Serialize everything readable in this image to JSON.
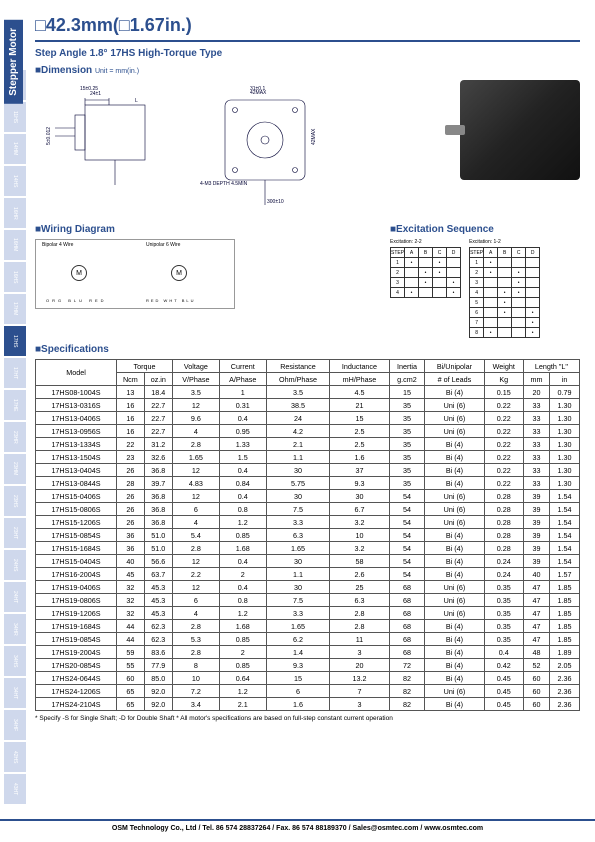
{
  "title": "□42.3mm(□1.67in.)",
  "subtitle": "Step Angle 1.8°   17HS High-Torque Type",
  "sections": {
    "dimension": "■Dimension",
    "dimension_unit": "Unit = mm(in.)",
    "wiring": "■Wiring Diagram",
    "excitation": "■Excitation Sequence",
    "specs": "■Specifications"
  },
  "sidelabel": "Stepper Motor",
  "sidetabs": [
    "8HS",
    "11HS",
    "14HM",
    "14HS",
    "16HR",
    "16HM",
    "16HS",
    "17HM",
    "17HS",
    "17HT",
    "17HE",
    "23HR",
    "23HM",
    "23HS",
    "23HT",
    "24HS",
    "24HT",
    "34HR",
    "34HS",
    "34HT",
    "34HF",
    "42HS",
    "43HT"
  ],
  "dim_labels": {
    "w": "42MAX",
    "h": "42MAX",
    "shaft": "5±0.012",
    "hole": "4-M3 DEPTH 4.5MIN",
    "pitch": "31±0.1",
    "lead": "300±10",
    "front": "24±1",
    "flat": "15±0.25"
  },
  "wiring_labels": {
    "left": "Bipolar 4 Wire",
    "right": "Unipolar 6 Wire",
    "m": "M",
    "colors": [
      "ORG",
      "BLU",
      "RED",
      "WHT",
      "YEL"
    ]
  },
  "exc_labels": {
    "t1": "Excitation: 2-2",
    "t2": "Excitation: 1-2"
  },
  "spec_headers": {
    "model": "Model",
    "torque": "Torque",
    "torque_u": [
      "Ncm",
      "oz.in"
    ],
    "voltage": "Voltage",
    "voltage_u": "V/Phase",
    "current": "Current",
    "current_u": "A/Phase",
    "resistance": "Resistance",
    "resistance_u": "Ohm/Phase",
    "inductance": "Inductance",
    "inductance_u": "mH/Phase",
    "inertia": "Inertia",
    "inertia_u": "g.cm2",
    "leads": "Bi/Unipolar",
    "leads_u": "# of Leads",
    "weight": "Weight",
    "weight_u": "Kg",
    "length": "Length \"L\"",
    "length_u": [
      "mm",
      "in"
    ]
  },
  "spec_rows": [
    [
      "17HS08-1004S",
      "13",
      "18.4",
      "3.5",
      "1",
      "3.5",
      "4.5",
      "15",
      "Bi (4)",
      "0.15",
      "20",
      "0.79"
    ],
    [
      "17HS13-0316S",
      "16",
      "22.7",
      "12",
      "0.31",
      "38.5",
      "21",
      "35",
      "Uni (6)",
      "0.22",
      "33",
      "1.30"
    ],
    [
      "17HS13-0406S",
      "16",
      "22.7",
      "9.6",
      "0.4",
      "24",
      "15",
      "35",
      "Uni (6)",
      "0.22",
      "33",
      "1.30"
    ],
    [
      "17HS13-0956S",
      "16",
      "22.7",
      "4",
      "0.95",
      "4.2",
      "2.5",
      "35",
      "Uni (6)",
      "0.22",
      "33",
      "1.30"
    ],
    [
      "17HS13-1334S",
      "22",
      "31.2",
      "2.8",
      "1.33",
      "2.1",
      "2.5",
      "35",
      "Bi (4)",
      "0.22",
      "33",
      "1.30"
    ],
    [
      "17HS13-1504S",
      "23",
      "32.6",
      "1.65",
      "1.5",
      "1.1",
      "1.6",
      "35",
      "Bi (4)",
      "0.22",
      "33",
      "1.30"
    ],
    [
      "17HS13-0404S",
      "26",
      "36.8",
      "12",
      "0.4",
      "30",
      "37",
      "35",
      "Bi (4)",
      "0.22",
      "33",
      "1.30"
    ],
    [
      "17HS13-0844S",
      "28",
      "39.7",
      "4.83",
      "0.84",
      "5.75",
      "9.3",
      "35",
      "Bi (4)",
      "0.22",
      "33",
      "1.30"
    ],
    [
      "17HS15-0406S",
      "26",
      "36.8",
      "12",
      "0.4",
      "30",
      "30",
      "54",
      "Uni (6)",
      "0.28",
      "39",
      "1.54"
    ],
    [
      "17HS15-0806S",
      "26",
      "36.8",
      "6",
      "0.8",
      "7.5",
      "6.7",
      "54",
      "Uni (6)",
      "0.28",
      "39",
      "1.54"
    ],
    [
      "17HS15-1206S",
      "26",
      "36.8",
      "4",
      "1.2",
      "3.3",
      "3.2",
      "54",
      "Uni (6)",
      "0.28",
      "39",
      "1.54"
    ],
    [
      "17HS15-0854S",
      "36",
      "51.0",
      "5.4",
      "0.85",
      "6.3",
      "10",
      "54",
      "Bi (4)",
      "0.28",
      "39",
      "1.54"
    ],
    [
      "17HS15-1684S",
      "36",
      "51.0",
      "2.8",
      "1.68",
      "1.65",
      "3.2",
      "54",
      "Bi (4)",
      "0.28",
      "39",
      "1.54"
    ],
    [
      "17HS15-0404S",
      "40",
      "56.6",
      "12",
      "0.4",
      "30",
      "58",
      "54",
      "Bi (4)",
      "0.24",
      "39",
      "1.54"
    ],
    [
      "17HS16-2004S",
      "45",
      "63.7",
      "2.2",
      "2",
      "1.1",
      "2.6",
      "54",
      "Bi (4)",
      "0.24",
      "40",
      "1.57"
    ],
    [
      "17HS19-0406S",
      "32",
      "45.3",
      "12",
      "0.4",
      "30",
      "25",
      "68",
      "Uni (6)",
      "0.35",
      "47",
      "1.85"
    ],
    [
      "17HS19-0806S",
      "32",
      "45.3",
      "6",
      "0.8",
      "7.5",
      "6.3",
      "68",
      "Uni (6)",
      "0.35",
      "47",
      "1.85"
    ],
    [
      "17HS19-1206S",
      "32",
      "45.3",
      "4",
      "1.2",
      "3.3",
      "2.8",
      "68",
      "Uni (6)",
      "0.35",
      "47",
      "1.85"
    ],
    [
      "17HS19-1684S",
      "44",
      "62.3",
      "2.8",
      "1.68",
      "1.65",
      "2.8",
      "68",
      "Bi (4)",
      "0.35",
      "47",
      "1.85"
    ],
    [
      "17HS19-0854S",
      "44",
      "62.3",
      "5.3",
      "0.85",
      "6.2",
      "11",
      "68",
      "Bi (4)",
      "0.35",
      "47",
      "1.85"
    ],
    [
      "17HS19-2004S",
      "59",
      "83.6",
      "2.8",
      "2",
      "1.4",
      "3",
      "68",
      "Bi (4)",
      "0.4",
      "48",
      "1.89"
    ],
    [
      "17HS20-0854S",
      "55",
      "77.9",
      "8",
      "0.85",
      "9.3",
      "20",
      "72",
      "Bi (4)",
      "0.42",
      "52",
      "2.05"
    ],
    [
      "17HS24-0644S",
      "60",
      "85.0",
      "10",
      "0.64",
      "15",
      "13.2",
      "82",
      "Bi (4)",
      "0.45",
      "60",
      "2.36"
    ],
    [
      "17HS24-1206S",
      "65",
      "92.0",
      "7.2",
      "1.2",
      "6",
      "7",
      "82",
      "Uni (6)",
      "0.45",
      "60",
      "2.36"
    ],
    [
      "17HS24-2104S",
      "65",
      "92.0",
      "3.4",
      "2.1",
      "1.6",
      "3",
      "82",
      "Bi (4)",
      "0.45",
      "60",
      "2.36"
    ]
  ],
  "footnote": "* Specify -S for Single Shaft; -D for Double Shaft    * All motor's specifications are based on full-step constant current operation",
  "footer": "OSM Technology Co., Ltd / Tel. 86 574 28837264 / Fax. 86 574 88189370 / Sales@osmtec.com / www.osmtec.com"
}
